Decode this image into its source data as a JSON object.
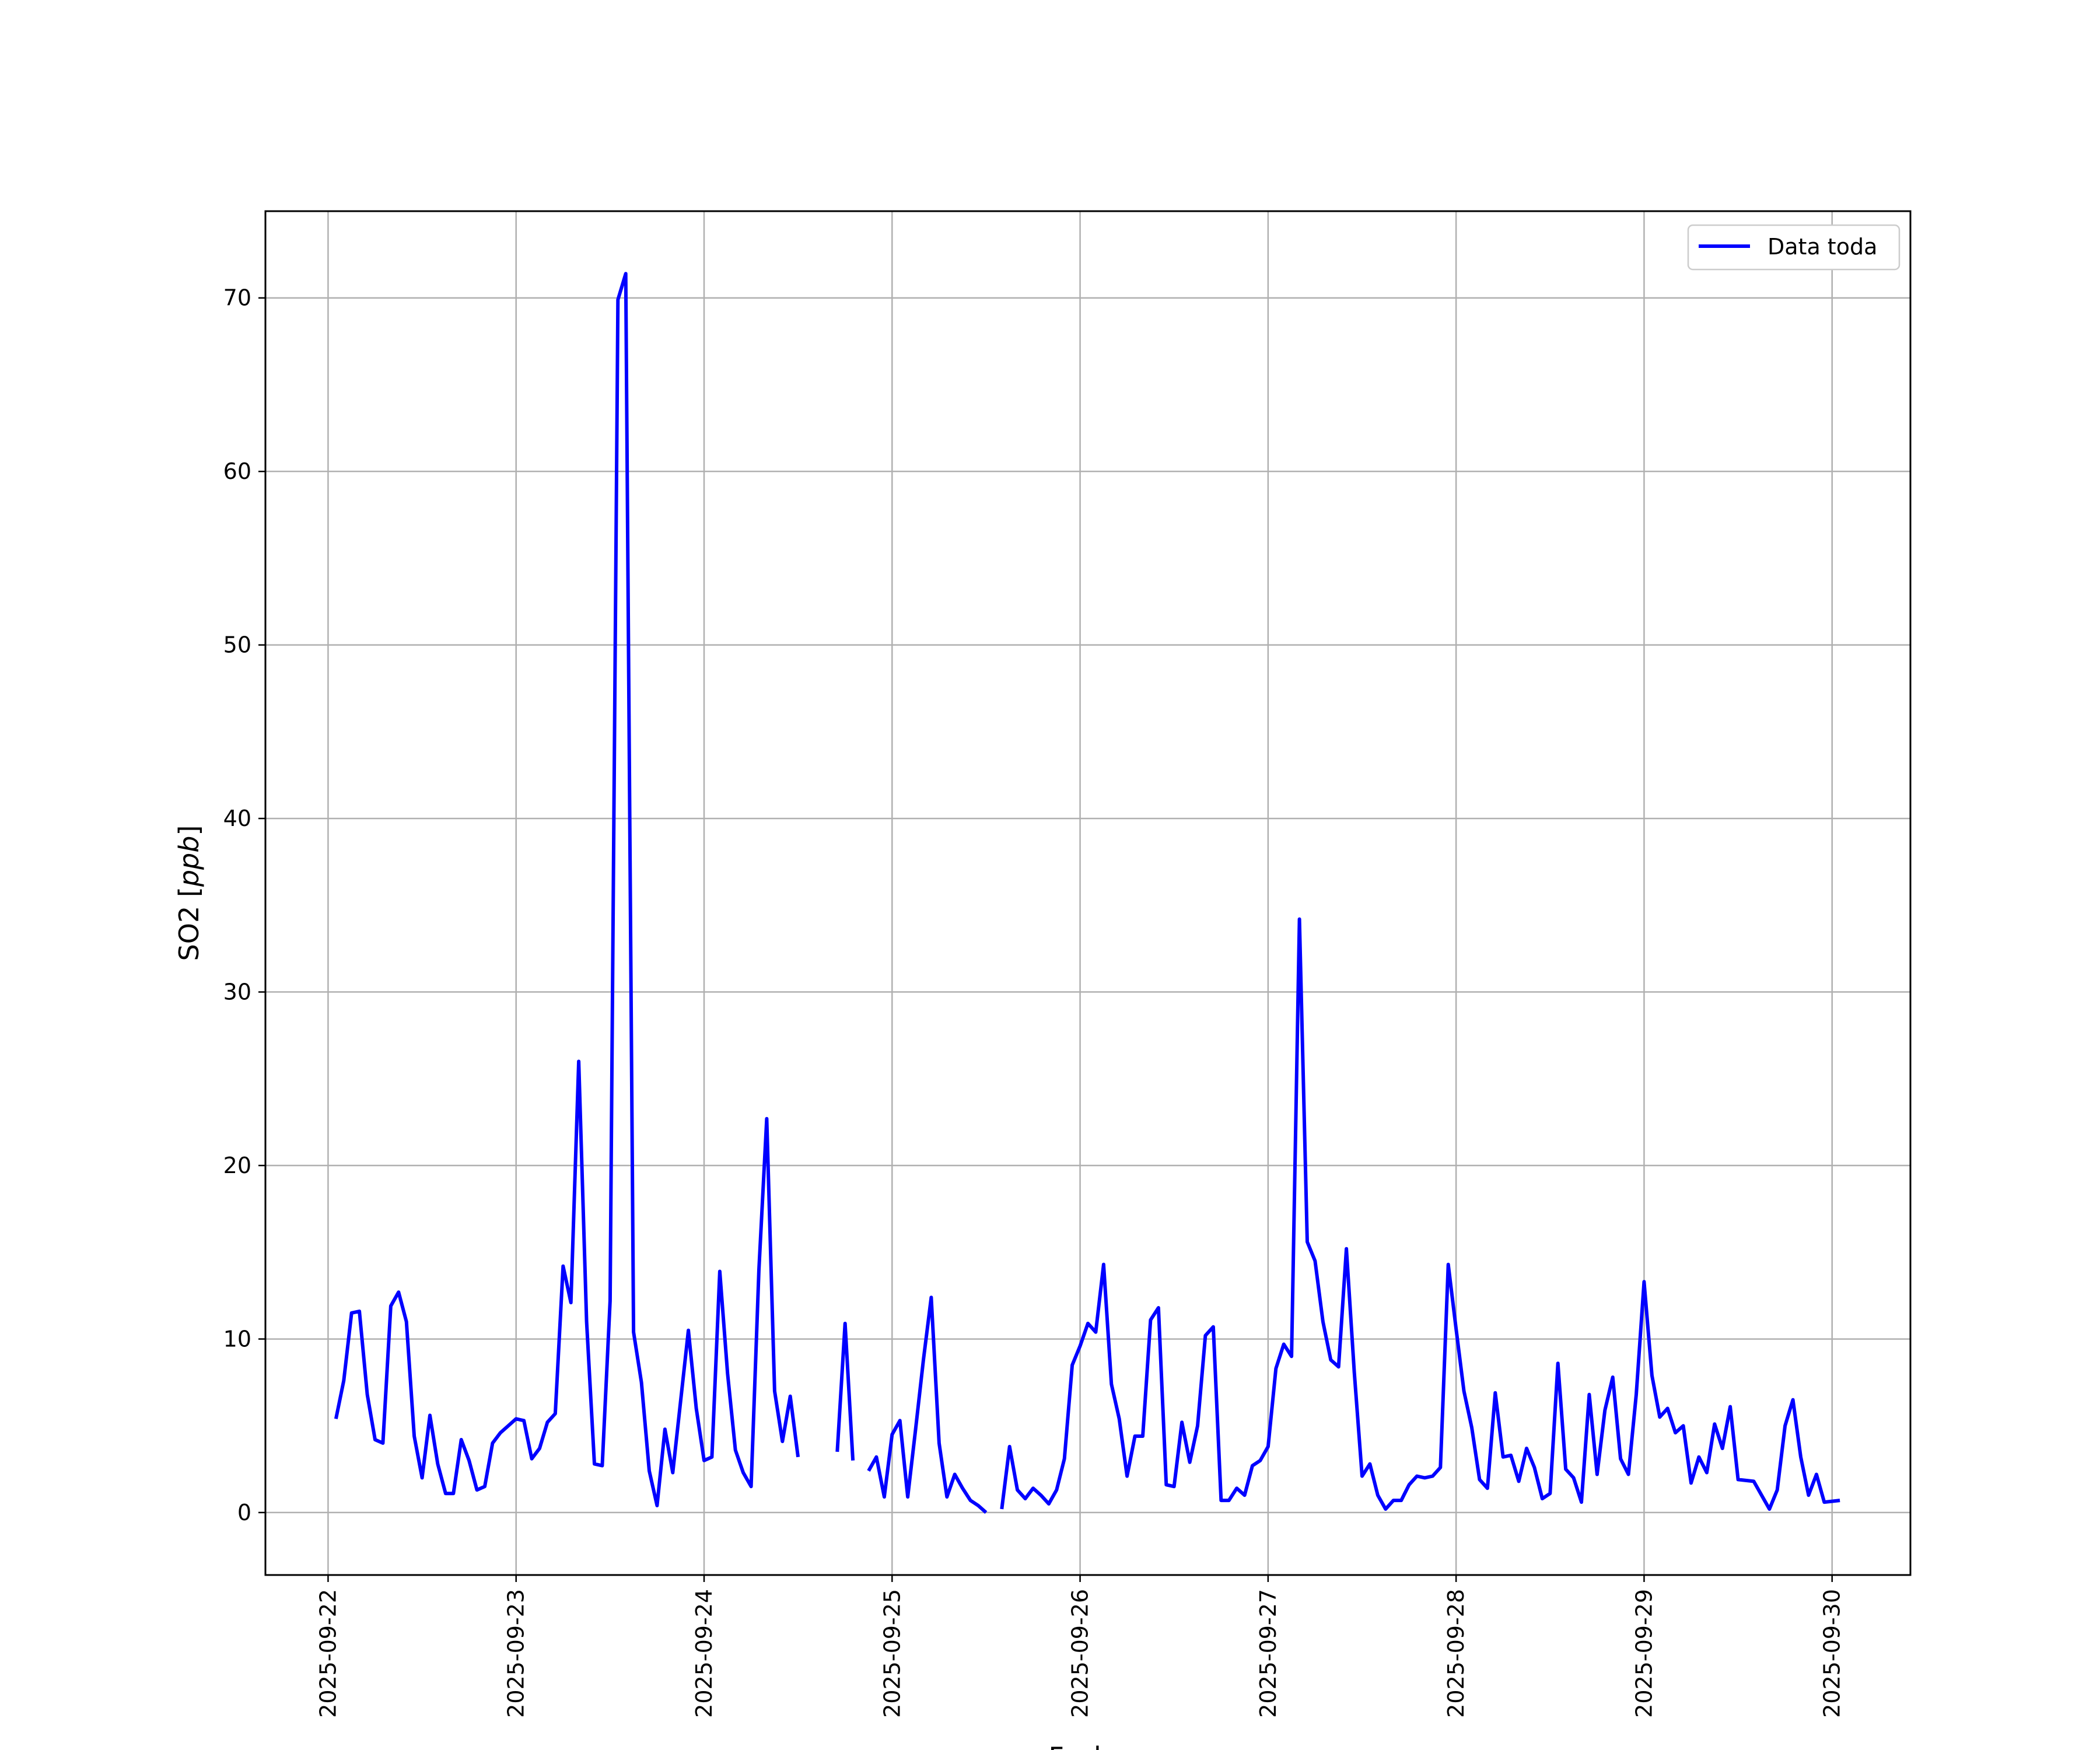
{
  "chart_data": {
    "type": "line",
    "title": "",
    "xlabel": "Fecha",
    "ylabel": "SO2 [ppb]",
    "ylabel_parts": {
      "plain": "SO2 [",
      "italic": "ppb",
      "close": "]"
    },
    "x_tick_labels": [
      "2025-09-22",
      "2025-09-23",
      "2025-09-24",
      "2025-09-25",
      "2025-09-26",
      "2025-09-27",
      "2025-09-28",
      "2025-09-29",
      "2025-09-30"
    ],
    "y_ticks": [
      0,
      10,
      20,
      30,
      40,
      50,
      60,
      70
    ],
    "xlim": [
      "2025-09-21T16:00",
      "2025-09-30T10:00"
    ],
    "ylim": [
      -3.6,
      75
    ],
    "grid": true,
    "legend_position": "top-right",
    "colors": {
      "series": "#0000ff",
      "grid": "#b0b0b0",
      "axes": "#000000"
    },
    "series": [
      {
        "name": "Data toda",
        "points": [
          [
            "2025-09-22T01:00",
            5.4
          ],
          [
            "2025-09-22T02:00",
            7.6
          ],
          [
            "2025-09-22T03:00",
            11.5
          ],
          [
            "2025-09-22T04:00",
            11.6
          ],
          [
            "2025-09-22T05:00",
            6.8
          ],
          [
            "2025-09-22T06:00",
            4.2
          ],
          [
            "2025-09-22T07:00",
            4.0
          ],
          [
            "2025-09-22T08:00",
            11.9
          ],
          [
            "2025-09-22T09:00",
            12.7
          ],
          [
            "2025-09-22T10:00",
            11.0
          ],
          [
            "2025-09-22T11:00",
            4.4
          ],
          [
            "2025-09-22T12:00",
            2.0
          ],
          [
            "2025-09-22T13:00",
            5.6
          ],
          [
            "2025-09-22T14:00",
            2.8
          ],
          [
            "2025-09-22T15:00",
            1.1
          ],
          [
            "2025-09-22T16:00",
            1.1
          ],
          [
            "2025-09-22T17:00",
            4.2
          ],
          [
            "2025-09-22T18:00",
            3.0
          ],
          [
            "2025-09-22T19:00",
            1.3
          ],
          [
            "2025-09-22T20:00",
            1.5
          ],
          [
            "2025-09-22T21:00",
            4.0
          ],
          [
            "2025-09-22T22:00",
            4.6
          ],
          [
            "2025-09-22T23:00",
            5.0
          ],
          [
            "2025-09-23T00:00",
            5.4
          ],
          [
            "2025-09-23T01:00",
            5.3
          ],
          [
            "2025-09-23T02:00",
            3.1
          ],
          [
            "2025-09-23T03:00",
            3.7
          ],
          [
            "2025-09-23T04:00",
            5.2
          ],
          [
            "2025-09-23T05:00",
            5.7
          ],
          [
            "2025-09-23T06:00",
            14.2
          ],
          [
            "2025-09-23T07:00",
            12.1
          ],
          [
            "2025-09-23T08:00",
            26.0
          ],
          [
            "2025-09-23T09:00",
            11.0
          ],
          [
            "2025-09-23T10:00",
            2.8
          ],
          [
            "2025-09-23T11:00",
            2.7
          ],
          [
            "2025-09-23T12:00",
            12.2
          ],
          [
            "2025-09-23T13:00",
            69.9
          ],
          [
            "2025-09-23T14:00",
            71.4
          ],
          [
            "2025-09-23T15:00",
            10.4
          ],
          [
            "2025-09-23T16:00",
            7.5
          ],
          [
            "2025-09-23T17:00",
            2.4
          ],
          [
            "2025-09-23T18:00",
            0.4
          ],
          [
            "2025-09-23T19:00",
            4.8
          ],
          [
            "2025-09-23T20:00",
            2.3
          ],
          [
            "2025-09-23T21:00",
            6.4
          ],
          [
            "2025-09-23T22:00",
            10.5
          ],
          [
            "2025-09-23T23:00",
            6.0
          ],
          [
            "2025-09-24T00:00",
            3.0
          ],
          [
            "2025-09-24T01:00",
            3.2
          ],
          [
            "2025-09-24T02:00",
            13.9
          ],
          [
            "2025-09-24T03:00",
            8.0
          ],
          [
            "2025-09-24T04:00",
            3.6
          ],
          [
            "2025-09-24T05:00",
            2.3
          ],
          [
            "2025-09-24T06:00",
            1.5
          ],
          [
            "2025-09-24T07:00",
            14.0
          ],
          [
            "2025-09-24T08:00",
            22.7
          ],
          [
            "2025-09-24T09:00",
            7.0
          ],
          [
            "2025-09-24T10:00",
            4.1
          ],
          [
            "2025-09-24T11:00",
            6.7
          ],
          [
            "2025-09-24T12:00",
            3.2
          ],
          null,
          [
            "2025-09-24T17:00",
            3.5
          ],
          [
            "2025-09-24T18:00",
            10.9
          ],
          [
            "2025-09-24T19:00",
            3.0
          ],
          null,
          [
            "2025-09-24T21:00",
            2.4
          ],
          [
            "2025-09-24T22:00",
            3.2
          ],
          [
            "2025-09-24T23:00",
            0.9
          ],
          [
            "2025-09-25T00:00",
            4.5
          ],
          [
            "2025-09-25T01:00",
            5.3
          ],
          [
            "2025-09-25T02:00",
            0.9
          ],
          [
            "2025-09-25T03:00",
            4.8
          ],
          [
            "2025-09-25T04:00",
            8.8
          ],
          [
            "2025-09-25T05:00",
            12.4
          ],
          [
            "2025-09-25T06:00",
            4.0
          ],
          [
            "2025-09-25T07:00",
            0.9
          ],
          [
            "2025-09-25T08:00",
            2.2
          ],
          [
            "2025-09-25T09:00",
            1.4
          ],
          [
            "2025-09-25T10:00",
            0.7
          ],
          [
            "2025-09-25T11:00",
            0.4
          ],
          [
            "2025-09-25T12:00",
            0.0
          ],
          null,
          [
            "2025-09-25T14:00",
            0.2
          ],
          [
            "2025-09-25T15:00",
            3.8
          ],
          [
            "2025-09-25T16:00",
            1.3
          ],
          [
            "2025-09-25T17:00",
            0.8
          ],
          [
            "2025-09-25T18:00",
            1.4
          ],
          [
            "2025-09-25T19:00",
            1.0
          ],
          [
            "2025-09-25T20:00",
            0.5
          ],
          [
            "2025-09-25T21:00",
            1.3
          ],
          [
            "2025-09-25T22:00",
            3.1
          ],
          [
            "2025-09-25T23:00",
            8.5
          ],
          [
            "2025-09-26T00:00",
            9.6
          ],
          [
            "2025-09-26T01:00",
            10.9
          ],
          [
            "2025-09-26T02:00",
            10.4
          ],
          [
            "2025-09-26T03:00",
            14.3
          ],
          [
            "2025-09-26T04:00",
            7.4
          ],
          [
            "2025-09-26T05:00",
            5.4
          ],
          [
            "2025-09-26T06:00",
            2.1
          ],
          [
            "2025-09-26T07:00",
            4.4
          ],
          [
            "2025-09-26T08:00",
            4.4
          ],
          [
            "2025-09-26T09:00",
            11.1
          ],
          [
            "2025-09-26T10:00",
            11.8
          ],
          [
            "2025-09-26T11:00",
            1.6
          ],
          [
            "2025-09-26T12:00",
            1.5
          ],
          [
            "2025-09-26T13:00",
            5.2
          ],
          [
            "2025-09-26T14:00",
            2.9
          ],
          [
            "2025-09-26T15:00",
            5.0
          ],
          [
            "2025-09-26T16:00",
            10.2
          ],
          [
            "2025-09-26T17:00",
            10.7
          ],
          [
            "2025-09-26T18:00",
            0.7
          ],
          [
            "2025-09-26T19:00",
            0.7
          ],
          [
            "2025-09-26T20:00",
            1.4
          ],
          [
            "2025-09-26T21:00",
            1.0
          ],
          [
            "2025-09-26T22:00",
            2.7
          ],
          [
            "2025-09-26T23:00",
            3.0
          ],
          [
            "2025-09-27T00:00",
            3.8
          ],
          [
            "2025-09-27T01:00",
            8.3
          ],
          [
            "2025-09-27T02:00",
            9.7
          ],
          [
            "2025-09-27T03:00",
            9.0
          ],
          [
            "2025-09-27T04:00",
            34.2
          ],
          [
            "2025-09-27T05:00",
            15.6
          ],
          [
            "2025-09-27T06:00",
            14.5
          ],
          [
            "2025-09-27T07:00",
            11.0
          ],
          [
            "2025-09-27T08:00",
            8.8
          ],
          [
            "2025-09-27T09:00",
            8.4
          ],
          [
            "2025-09-27T10:00",
            15.2
          ],
          [
            "2025-09-27T11:00",
            8.1
          ],
          [
            "2025-09-27T12:00",
            2.1
          ],
          [
            "2025-09-27T13:00",
            2.8
          ],
          [
            "2025-09-27T14:00",
            1.0
          ],
          [
            "2025-09-27T15:00",
            0.2
          ],
          [
            "2025-09-27T16:00",
            0.7
          ],
          [
            "2025-09-27T17:00",
            0.7
          ],
          [
            "2025-09-27T18:00",
            1.6
          ],
          [
            "2025-09-27T19:00",
            2.1
          ],
          [
            "2025-09-27T20:00",
            2.0
          ],
          [
            "2025-09-27T21:00",
            2.1
          ],
          [
            "2025-09-27T22:00",
            2.6
          ],
          [
            "2025-09-27T23:00",
            14.3
          ],
          [
            "2025-09-28T00:00",
            10.6
          ],
          [
            "2025-09-28T01:00",
            7.0
          ],
          [
            "2025-09-28T02:00",
            4.9
          ],
          [
            "2025-09-28T03:00",
            1.9
          ],
          [
            "2025-09-28T04:00",
            1.4
          ],
          [
            "2025-09-28T05:00",
            6.9
          ],
          [
            "2025-09-28T06:00",
            3.2
          ],
          [
            "2025-09-28T07:00",
            3.3
          ],
          [
            "2025-09-28T08:00",
            1.8
          ],
          [
            "2025-09-28T09:00",
            3.7
          ],
          [
            "2025-09-28T10:00",
            2.6
          ],
          [
            "2025-09-28T11:00",
            0.8
          ],
          [
            "2025-09-28T12:00",
            1.1
          ],
          [
            "2025-09-28T13:00",
            8.6
          ],
          [
            "2025-09-28T14:00",
            2.5
          ],
          [
            "2025-09-28T15:00",
            2.0
          ],
          [
            "2025-09-28T16:00",
            0.6
          ],
          [
            "2025-09-28T17:00",
            6.8
          ],
          [
            "2025-09-28T18:00",
            2.2
          ],
          [
            "2025-09-28T19:00",
            5.9
          ],
          [
            "2025-09-28T20:00",
            7.8
          ],
          [
            "2025-09-28T21:00",
            3.1
          ],
          [
            "2025-09-28T22:00",
            2.2
          ],
          [
            "2025-09-28T23:00",
            6.8
          ],
          [
            "2025-09-29T00:00",
            13.3
          ],
          [
            "2025-09-29T01:00",
            7.9
          ],
          [
            "2025-09-29T02:00",
            5.5
          ],
          [
            "2025-09-29T03:00",
            6.0
          ],
          [
            "2025-09-29T04:00",
            4.6
          ],
          [
            "2025-09-29T05:00",
            5.0
          ],
          [
            "2025-09-29T06:00",
            1.7
          ],
          [
            "2025-09-29T07:00",
            3.2
          ],
          [
            "2025-09-29T08:00",
            2.3
          ],
          [
            "2025-09-29T09:00",
            5.1
          ],
          [
            "2025-09-29T10:00",
            3.7
          ],
          [
            "2025-09-29T11:00",
            6.1
          ],
          [
            "2025-09-29T12:00",
            1.9
          ],
          [
            "2025-09-29T14:00",
            1.8
          ],
          [
            "2025-09-29T16:00",
            0.2
          ],
          [
            "2025-09-29T17:00",
            1.3
          ],
          [
            "2025-09-29T18:00",
            5.0
          ],
          [
            "2025-09-29T19:00",
            6.5
          ],
          [
            "2025-09-29T20:00",
            3.2
          ],
          [
            "2025-09-29T21:00",
            1.0
          ],
          [
            "2025-09-29T22:00",
            2.2
          ],
          [
            "2025-09-29T23:00",
            0.6
          ],
          [
            "2025-09-30T01:00",
            0.7
          ]
        ]
      }
    ]
  }
}
